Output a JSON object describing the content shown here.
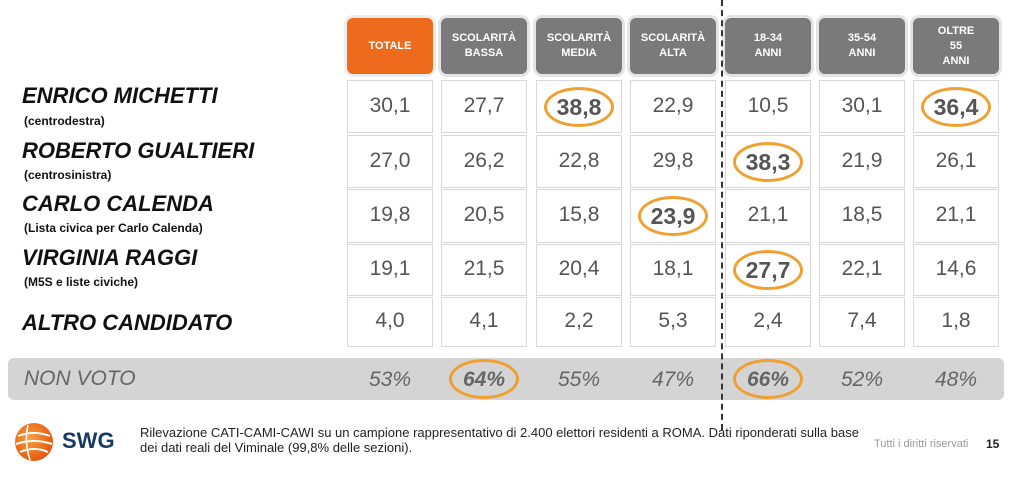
{
  "columns": [
    "TOTALE",
    "SCOLARITÀ BASSA",
    "SCOLARITÀ MEDIA",
    "SCOLARITÀ ALTA",
    "18-34 ANNI",
    "35-54 ANNI",
    "OLTRE 55 ANNI"
  ],
  "chart_data": {
    "type": "table",
    "columns": [
      "TOTALE",
      "SCOLARITÀ BASSA",
      "SCOLARITÀ MEDIA",
      "SCOLARITÀ ALTA",
      "18-34 ANNI",
      "35-54 ANNI",
      "OLTRE 55 ANNI"
    ],
    "rows": [
      {
        "name": "ENRICO MICHETTI",
        "sub": "(centrodestra)",
        "values": [
          "30,1",
          "27,7",
          "38,8",
          "22,9",
          "10,5",
          "30,1",
          "36,4"
        ],
        "highlight": [
          2,
          6
        ]
      },
      {
        "name": "ROBERTO GUALTIERI",
        "sub": "(centrosinistra)",
        "values": [
          "27,0",
          "26,2",
          "22,8",
          "29,8",
          "38,3",
          "21,9",
          "26,1"
        ],
        "highlight": [
          4
        ]
      },
      {
        "name": "CARLO CALENDA",
        "sub": "(Lista civica per Carlo Calenda)",
        "values": [
          "19,8",
          "20,5",
          "15,8",
          "23,9",
          "21,1",
          "18,5",
          "21,1"
        ],
        "highlight": [
          3
        ]
      },
      {
        "name": "VIRGINIA RAGGI",
        "sub": "(M5S e liste civiche)",
        "values": [
          "19,1",
          "21,5",
          "20,4",
          "18,1",
          "27,7",
          "22,1",
          "14,6"
        ],
        "highlight": [
          4
        ]
      },
      {
        "name": "ALTRO CANDIDATO",
        "sub": "",
        "values": [
          "4,0",
          "4,1",
          "2,2",
          "5,3",
          "2,4",
          "7,4",
          "1,8"
        ],
        "highlight": []
      }
    ],
    "non_voto": {
      "label": "NON VOTO",
      "values": [
        "53%",
        "64%",
        "55%",
        "47%",
        "66%",
        "52%",
        "48%"
      ],
      "highlight": [
        1,
        4
      ]
    }
  },
  "colors": {
    "header_grey": "#7a7a7a",
    "header_orange": "#ee6a1c",
    "highlight_ring": "#f0a030",
    "band": "#d4d4d4"
  },
  "footer": {
    "logo_text": "SWG",
    "note": "Rilevazione CATI-CAMI-CAWI su un campione rappresentativo di 2.400 elettori residenti a ROMA. Dati riponderati sulla base dei dati reali del Viminale (99,8% delle sezioni).",
    "rights": "Tutti i diritti riservati",
    "page": "15"
  }
}
